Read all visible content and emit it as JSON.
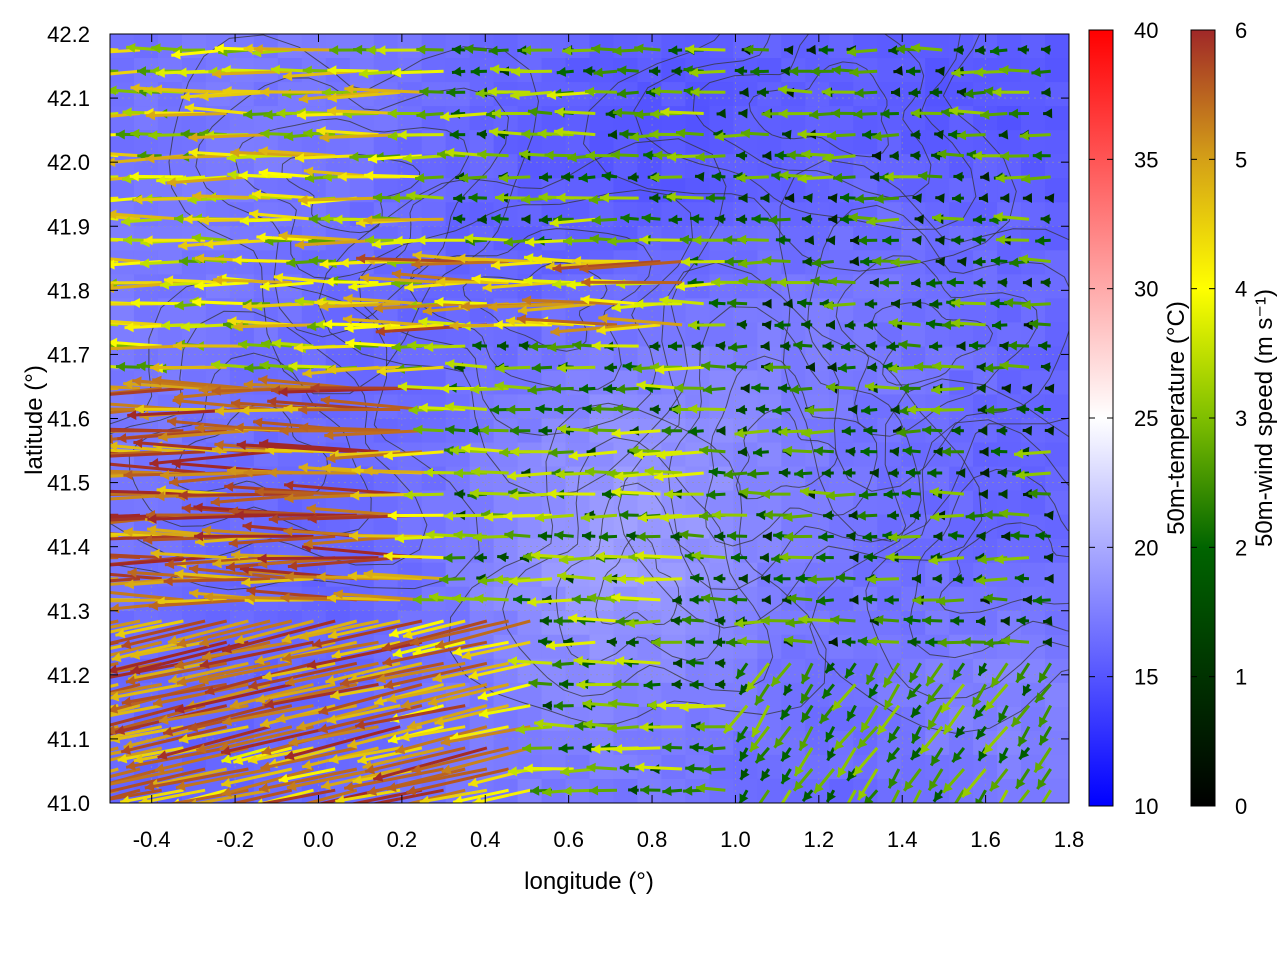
{
  "chart_data": {
    "type": "vector-field",
    "xlabel": "longitude (°)",
    "ylabel": "latitude (°)",
    "xlim": [
      -0.5,
      1.8
    ],
    "ylim": [
      41.0,
      42.2
    ],
    "xticks": [
      "-0.4",
      "-0.2",
      "0.0",
      "0.2",
      "0.4",
      "0.6",
      "0.8",
      "1.0",
      "1.2",
      "1.4",
      "1.6",
      "1.8"
    ],
    "xtick_values": [
      -0.4,
      -0.2,
      0.0,
      0.2,
      0.4,
      0.6,
      0.8,
      1.0,
      1.2,
      1.4,
      1.6,
      1.8
    ],
    "yticks": [
      "41.0",
      "41.1",
      "41.2",
      "41.3",
      "41.4",
      "41.5",
      "41.6",
      "41.7",
      "41.8",
      "41.9",
      "42.0",
      "42.1",
      "42.2"
    ],
    "ytick_values": [
      41.0,
      41.1,
      41.2,
      41.3,
      41.4,
      41.5,
      41.6,
      41.7,
      41.8,
      41.9,
      42.0,
      42.1,
      42.2
    ],
    "grid": true,
    "temperature_colorbar": {
      "label": "50m-temperature (°C)",
      "range": [
        10,
        40
      ],
      "ticks": [
        "10",
        "15",
        "20",
        "25",
        "30",
        "35",
        "40"
      ],
      "tick_values": [
        10,
        15,
        20,
        25,
        30,
        35,
        40
      ],
      "colors": [
        "#0000ff",
        "#ffffff",
        "#ff0000"
      ],
      "field_range_shown": [
        14,
        22
      ]
    },
    "wind_colorbar": {
      "label": "50m-wind speed (m s⁻¹)",
      "range": [
        0,
        6
      ],
      "ticks": [
        "0",
        "1",
        "2",
        "3",
        "4",
        "5",
        "6"
      ],
      "tick_values": [
        0,
        1,
        2,
        3,
        4,
        5,
        6
      ],
      "colors": [
        "#000000",
        "#006400",
        "#7fbf00",
        "#ffff00",
        "#d4a017",
        "#c06020",
        "#a02828"
      ]
    },
    "wind_regions": [
      {
        "region": "west, lat 41.1-41.7",
        "direction": "westward",
        "speed": 5.8
      },
      {
        "region": "west, lat 41.7-42.2",
        "direction": "westward",
        "speed": 4.0
      },
      {
        "region": "central",
        "direction": "westward",
        "speed": 3.0
      },
      {
        "region": "east",
        "direction": "westward",
        "speed": 1.5
      },
      {
        "region": "southeast, lat < 41.25",
        "direction": "southward",
        "speed": 2.5
      }
    ]
  }
}
